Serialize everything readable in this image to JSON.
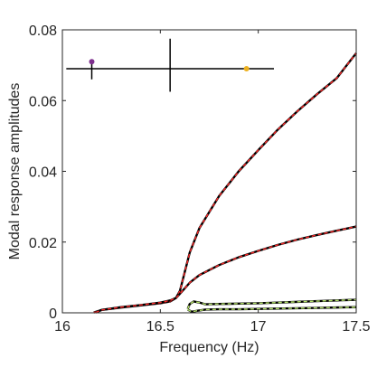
{
  "chart_data": {
    "type": "line",
    "title": "",
    "xlabel": "Frequency (Hz)",
    "ylabel": "Modal response amplitudes",
    "xlim": [
      16,
      17.5
    ],
    "ylim": [
      0,
      0.08
    ],
    "x_ticks": [
      "16",
      "16.5",
      "17",
      "17.5"
    ],
    "x_tick_values": [
      16,
      16.5,
      17,
      17.5
    ],
    "y_ticks": [
      "0",
      "0.02",
      "0.04",
      "0.06",
      "0.08"
    ],
    "y_tick_values": [
      0,
      0.02,
      0.04,
      0.06,
      0.08
    ],
    "grid": false,
    "series": [
      {
        "color": "#000000",
        "overlay_color": "#ff2a2a",
        "points": [
          [
            16.16,
            0.0001
          ],
          [
            16.2,
            0.0008
          ],
          [
            16.3,
            0.0015
          ],
          [
            16.4,
            0.0021
          ],
          [
            16.5,
            0.0027
          ],
          [
            16.55,
            0.0032
          ],
          [
            16.58,
            0.0042
          ],
          [
            16.6,
            0.0062
          ],
          [
            16.62,
            0.0105
          ],
          [
            16.65,
            0.017
          ],
          [
            16.7,
            0.024
          ],
          [
            16.8,
            0.033
          ],
          [
            16.9,
            0.04
          ],
          [
            17.0,
            0.046
          ],
          [
            17.1,
            0.0518
          ],
          [
            17.2,
            0.057
          ],
          [
            17.3,
            0.0618
          ],
          [
            17.4,
            0.0663
          ],
          [
            17.5,
            0.0734
          ]
        ]
      },
      {
        "color": "#000000",
        "overlay_color": "#ff2a2a",
        "points": [
          [
            16.17,
            0.0001
          ],
          [
            16.2,
            0.0008
          ],
          [
            16.3,
            0.0016
          ],
          [
            16.4,
            0.0022
          ],
          [
            16.5,
            0.0029
          ],
          [
            16.55,
            0.0035
          ],
          [
            16.58,
            0.0042
          ],
          [
            16.61,
            0.006
          ],
          [
            16.65,
            0.0085
          ],
          [
            16.7,
            0.0107
          ],
          [
            16.8,
            0.0135
          ],
          [
            16.9,
            0.0157
          ],
          [
            17.0,
            0.0175
          ],
          [
            17.1,
            0.0192
          ],
          [
            17.2,
            0.0207
          ],
          [
            17.3,
            0.022
          ],
          [
            17.4,
            0.0232
          ],
          [
            17.5,
            0.0244
          ]
        ]
      },
      {
        "color": "#000000",
        "overlay_color": "#b5e26b",
        "points": [
          [
            16.64,
            0.0011
          ],
          [
            16.65,
            0.0025
          ],
          [
            16.67,
            0.0032
          ],
          [
            16.7,
            0.0029
          ],
          [
            16.73,
            0.0024
          ],
          [
            16.8,
            0.0025
          ],
          [
            16.9,
            0.0026
          ],
          [
            17.0,
            0.0027
          ],
          [
            17.1,
            0.0029
          ],
          [
            17.2,
            0.0031
          ],
          [
            17.3,
            0.0033
          ],
          [
            17.4,
            0.0035
          ],
          [
            17.5,
            0.0037
          ]
        ]
      },
      {
        "color": "#000000",
        "overlay_color": "#b5e26b",
        "points": [
          [
            16.64,
            0.0009
          ],
          [
            16.66,
            0.0003
          ],
          [
            16.69,
            0.0006
          ],
          [
            16.73,
            0.0009
          ],
          [
            16.8,
            0.001
          ],
          [
            16.9,
            0.001
          ],
          [
            17.0,
            0.0011
          ],
          [
            17.1,
            0.0012
          ],
          [
            17.2,
            0.0013
          ],
          [
            17.3,
            0.0014
          ],
          [
            17.4,
            0.0015
          ],
          [
            17.5,
            0.0016
          ]
        ]
      }
    ],
    "markers": [
      {
        "shape": "horizontal-bar",
        "y": 0.069,
        "x_range": [
          16.02,
          17.08
        ],
        "tick_x": 16.15,
        "tick_y_range": [
          0.066,
          0.0715
        ],
        "color": "#000000"
      },
      {
        "shape": "cross",
        "x": 16.55,
        "y_range": [
          0.0625,
          0.0775
        ],
        "color": "#000000"
      },
      {
        "shape": "dot",
        "x": 16.15,
        "y": 0.071,
        "color": "#7e2f8e"
      },
      {
        "shape": "dot",
        "x": 16.94,
        "y": 0.069,
        "color": "#edb120"
      }
    ]
  }
}
